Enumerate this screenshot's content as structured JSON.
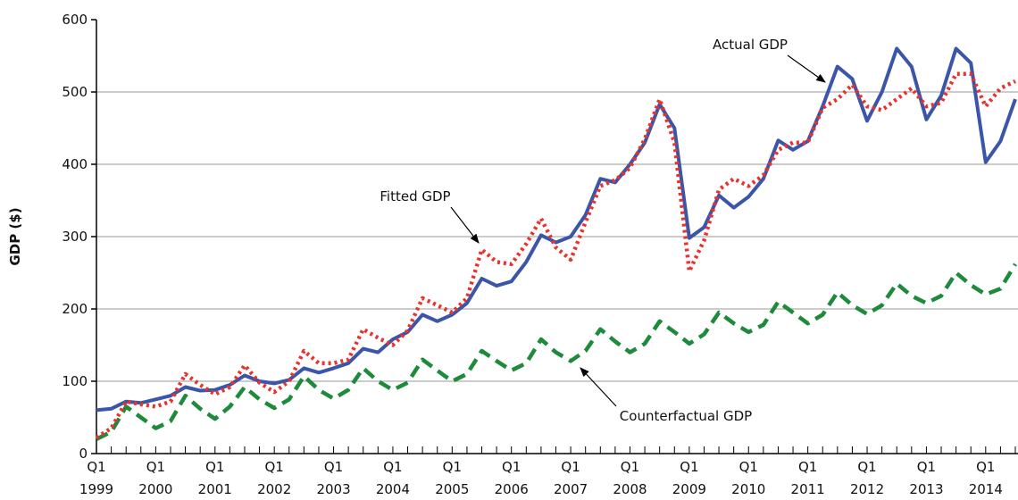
{
  "chart_data": {
    "type": "line",
    "y_label": "GDP ($)",
    "categories": [
      "Q1 1999",
      null,
      null,
      null,
      "Q1 2000",
      null,
      null,
      null,
      "Q1 2001",
      null,
      null,
      null,
      "Q1 2002",
      null,
      null,
      null,
      "Q1 2003",
      null,
      null,
      null,
      "Q1 2004",
      null,
      null,
      null,
      "Q1 2005",
      null,
      null,
      null,
      "Q1 2006",
      null,
      null,
      null,
      "Q1 2007",
      null,
      null,
      null,
      "Q1 2008",
      null,
      null,
      null,
      "Q1 2009",
      null,
      null,
      null,
      "Q1 2010",
      null,
      null,
      null,
      "Q1 2011",
      null,
      null,
      null,
      "Q1 2012",
      null,
      null,
      null,
      "Q1 2013",
      null,
      null,
      null,
      "Q1 2014",
      null,
      null
    ],
    "series": [
      {
        "name": "Actual GDP",
        "color": "#3b55a8",
        "style": "solid",
        "values": [
          60,
          62,
          72,
          70,
          75,
          80,
          92,
          87,
          88,
          95,
          108,
          100,
          97,
          102,
          118,
          112,
          118,
          125,
          145,
          140,
          158,
          168,
          192,
          183,
          192,
          208,
          242,
          232,
          238,
          265,
          302,
          292,
          300,
          330,
          380,
          375,
          400,
          430,
          483,
          450,
          298,
          313,
          357,
          340,
          355,
          380,
          433,
          420,
          432,
          480,
          535,
          518,
          460,
          500,
          560,
          535,
          462,
          495,
          560,
          540,
          403,
          432,
          490
        ]
      },
      {
        "name": "Fitted GDP",
        "color": "#e8322b",
        "style": "dotted",
        "values": [
          22,
          35,
          72,
          68,
          65,
          72,
          110,
          95,
          82,
          92,
          122,
          98,
          85,
          100,
          142,
          125,
          125,
          130,
          172,
          160,
          150,
          170,
          215,
          205,
          195,
          215,
          282,
          265,
          262,
          290,
          325,
          285,
          268,
          320,
          370,
          378,
          395,
          435,
          490,
          430,
          252,
          295,
          365,
          380,
          370,
          385,
          420,
          430,
          430,
          478,
          490,
          510,
          480,
          475,
          490,
          505,
          480,
          485,
          525,
          525,
          480,
          505,
          515
        ]
      },
      {
        "name": "Counterfactual GDP",
        "color": "#1e8a3c",
        "style": "dashed",
        "values": [
          20,
          30,
          65,
          50,
          35,
          45,
          80,
          62,
          48,
          65,
          92,
          75,
          63,
          75,
          107,
          88,
          76,
          88,
          118,
          100,
          88,
          98,
          130,
          115,
          100,
          110,
          142,
          128,
          115,
          125,
          158,
          140,
          128,
          142,
          172,
          155,
          140,
          152,
          183,
          168,
          152,
          165,
          195,
          180,
          168,
          178,
          210,
          195,
          180,
          192,
          223,
          205,
          193,
          205,
          235,
          218,
          208,
          218,
          250,
          233,
          220,
          228,
          262
        ]
      }
    ],
    "annotations": [
      "Actual GDP",
      "Fitted GDP",
      "Counterfactual GDP"
    ],
    "ylim": [
      0,
      600
    ],
    "yticks": [
      0,
      100,
      200,
      300,
      400,
      500,
      600
    ],
    "grid": true
  }
}
